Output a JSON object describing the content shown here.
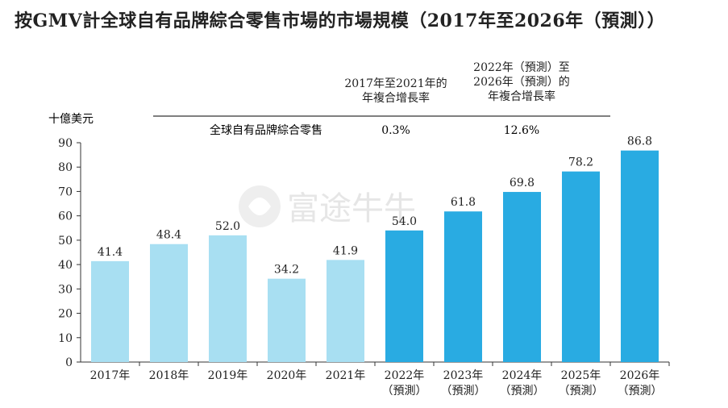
{
  "title": "按GMV計全球自有品牌綜合零售市場的市場規模（2017年至2026年（預測））",
  "y_unit": "十億美元",
  "cagr_table": {
    "row_label": "全球自有品牌綜合零售",
    "col1_header": [
      "2017年至2021年的",
      "年複合增長率"
    ],
    "col2_header": [
      "2022年（預測）至",
      "2026年（預測）的",
      "年複合增長率"
    ],
    "col1_value": "0.3%",
    "col2_value": "12.6%"
  },
  "watermark": "富途牛牛",
  "colors": {
    "historical": "#a8dff2",
    "forecast": "#29abe2",
    "text": "#222222",
    "axis": "#333333"
  },
  "chart_data": {
    "type": "bar",
    "categories": [
      "2017年",
      "2018年",
      "2019年",
      "2020年",
      "2021年",
      "2022年\n（預測）",
      "2023年\n（預測）",
      "2024年\n（預測）",
      "2025年\n（預測）",
      "2026年\n（預測）"
    ],
    "values": [
      41.4,
      48.4,
      52.0,
      34.2,
      41.9,
      54.0,
      61.8,
      69.8,
      78.2,
      86.8
    ],
    "value_labels": [
      "41.4",
      "48.4",
      "52.0",
      "34.2",
      "41.9",
      "54.0",
      "61.8",
      "69.8",
      "78.2",
      "86.8"
    ],
    "forecast": [
      false,
      false,
      false,
      false,
      false,
      true,
      true,
      true,
      true,
      true
    ],
    "ylim": [
      0,
      90
    ],
    "yticks": [
      0,
      10,
      20,
      30,
      40,
      50,
      60,
      70,
      80,
      90
    ],
    "ylabel": "十億美元",
    "xlabel": "",
    "grid": false,
    "legend": "none"
  }
}
